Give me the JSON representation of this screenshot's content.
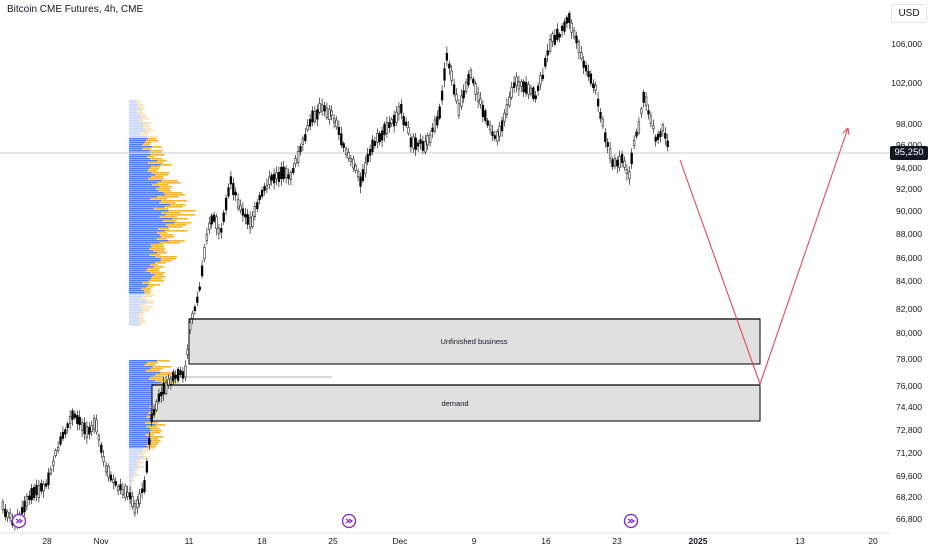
{
  "header": {
    "title": "Bitcoin CME Futures, 4h, CME",
    "currency_button": "USD"
  },
  "price_axis": {
    "labels": [
      "106,000",
      "102,000",
      "98,000",
      "96,000",
      "94,000",
      "92,000",
      "90,000",
      "88,000",
      "86,000",
      "84,000",
      "82,000",
      "80,000",
      "78,000",
      "76,000",
      "74,400",
      "72,800",
      "71,200",
      "69,600",
      "68,200",
      "66,800"
    ],
    "current_price": "95,250"
  },
  "time_axis": {
    "labels": [
      "28",
      "Nov",
      "11",
      "18",
      "25",
      "Dec",
      "9",
      "16",
      "23",
      "2025",
      "13",
      "20"
    ]
  },
  "zones": {
    "unfinished_business": "Unfinished business",
    "demand": "demand"
  },
  "colors": {
    "candle_up": "#ffffff",
    "candle_down": "#000000",
    "zone_fill": "#e0e0e0",
    "projection_line": "#f23645",
    "volume_blue": "#4f7cf6",
    "volume_blue_light": "#c9d6fb",
    "volume_orange": "#f5b532",
    "volume_orange_light": "#f8e1b5",
    "event_marker": "#7e22ce"
  },
  "icons": [
    "event-marker-icon",
    "event-marker-icon",
    "event-marker-icon"
  ]
}
